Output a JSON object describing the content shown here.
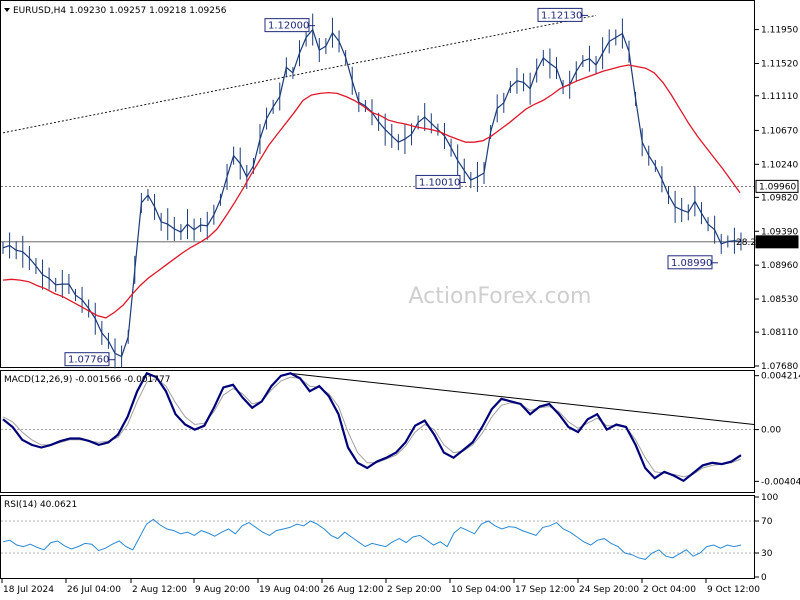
{
  "symbol_line": "EURUSD,H4  1.09230 1.09257 1.09218 1.09256",
  "watermark": "ActionForex.com",
  "colors": {
    "price": "#1a3a7a",
    "ma": "#e0182a",
    "macd": "#00007a",
    "signal": "#a0a0a0",
    "rsi": "#2a8ad6",
    "grid": "#b0b0b0"
  },
  "chart_data": [
    {
      "type": "line",
      "title": "EURUSD,H4  1.09230 1.09257 1.09218 1.09256",
      "ylim": [
        1.0768,
        1.123
      ],
      "y_ticks": [
        "1.11950",
        "1.11520",
        "1.11110",
        "1.10670",
        "1.10240",
        "1.09820",
        "1.09390",
        "1.08960",
        "1.08530",
        "1.08110",
        "1.07680"
      ],
      "reference_lines": [
        {
          "value": 1.0996,
          "label": "1.09960"
        },
        {
          "value": 1.09256,
          "label": "1.09256",
          "style": "solid"
        }
      ],
      "annotations": [
        "1.12000",
        "1.12130",
        "1.10010",
        "1.08990",
        "1.07760"
      ],
      "series": [
        {
          "values": [
            1.0918,
            1.0921,
            1.0915,
            1.0913,
            1.0905,
            1.0895,
            1.0884,
            1.0879,
            1.0871,
            1.0872,
            1.0872,
            1.0858,
            1.0852,
            1.0841,
            1.0828,
            1.081,
            1.08,
            1.0784,
            1.078,
            1.0805,
            1.089,
            1.0975,
            1.0985,
            1.097,
            1.0951,
            1.0948,
            1.0942,
            1.0938,
            1.0948,
            1.0941,
            1.0947,
            1.0946,
            1.096,
            1.0979,
            1.1008,
            1.1035,
            1.1025,
            1.1008,
            1.1022,
            1.1056,
            1.1082,
            1.1097,
            1.111,
            1.1147,
            1.114,
            1.1165,
            1.1185,
            1.1195,
            1.1169,
            1.1174,
            1.1191,
            1.118,
            1.116,
            1.113,
            1.1103,
            1.1098,
            1.109,
            1.1078,
            1.1068,
            1.106,
            1.1052,
            1.1056,
            1.1062,
            1.1077,
            1.1084,
            1.1076,
            1.1068,
            1.106,
            1.1045,
            1.1029,
            1.1016,
            1.1004,
            1.1008,
            1.1013,
            1.1065,
            1.1095,
            1.1102,
            1.1122,
            1.113,
            1.1128,
            1.112,
            1.1143,
            1.1159,
            1.1152,
            1.1146,
            1.1122,
            1.1125,
            1.1142,
            1.1155,
            1.1158,
            1.115,
            1.1165,
            1.118,
            1.1185,
            1.119,
            1.1167,
            1.1107,
            1.1052,
            1.1035,
            1.1022,
            1.1005,
            1.0985,
            1.097,
            1.0966,
            1.0963,
            1.0977,
            1.0962,
            1.0948,
            1.0941,
            1.0923,
            1.0926,
            1.0927,
            1.0926
          ]
        },
        {
          "name": "",
          "values": [
            1.0877,
            1.0878,
            1.0877,
            1.0875,
            1.087,
            1.0866,
            1.086,
            1.0856,
            1.085,
            1.0844,
            1.0838,
            1.0832,
            1.0829,
            1.0836,
            1.0845,
            1.0858,
            1.087,
            1.088,
            1.0888,
            1.0896,
            1.0904,
            1.0912,
            1.0919,
            1.0925,
            1.0932,
            1.0942,
            1.0958,
            1.0975,
            1.0993,
            1.1012,
            1.103,
            1.1048,
            1.1062,
            1.1076,
            1.109,
            1.1105,
            1.1112,
            1.1114,
            1.1115,
            1.1114,
            1.111,
            1.1105,
            1.1098,
            1.109,
            1.1086,
            1.108,
            1.1077,
            1.1075,
            1.1072,
            1.107,
            1.1068,
            1.1065,
            1.106,
            1.1056,
            1.1052,
            1.1052,
            1.1054,
            1.106,
            1.1068,
            1.1076,
            1.1085,
            1.1094,
            1.11,
            1.1105,
            1.1112,
            1.112,
            1.1125,
            1.113,
            1.1134,
            1.1138,
            1.1142,
            1.1145,
            1.1148,
            1.115,
            1.1148,
            1.1146,
            1.114,
            1.1128,
            1.1112,
            1.1094,
            1.1076,
            1.106,
            1.1046,
            1.1032,
            1.1018,
            1.1003,
            1.0988
          ]
        }
      ]
    },
    {
      "type": "line",
      "title": "MACD(12,26,9) -0.001566 -0.001777",
      "ylim": [
        -0.0048,
        0.0045
      ],
      "y_ticks": [
        "0.004214",
        "0.00",
        "-0.004047"
      ],
      "series": [
        {
          "values": [
            0.0008,
            0.0002,
            -0.0008,
            -0.0012,
            -0.0014,
            -0.0012,
            -0.0009,
            -0.0007,
            -0.0007,
            -0.0009,
            -0.0012,
            -0.001,
            -0.0004,
            0.001,
            0.003,
            0.0044,
            0.0041,
            0.003,
            0.0012,
            0.0004,
            0.0,
            0.0003,
            0.0017,
            0.0033,
            0.0035,
            0.0025,
            0.0017,
            0.0022,
            0.0034,
            0.0042,
            0.0044,
            0.004,
            0.003,
            0.0034,
            0.0026,
            0.0012,
            -0.0014,
            -0.0026,
            -0.003,
            -0.0025,
            -0.0022,
            -0.0018,
            -0.001,
            0.0003,
            0.0007,
            -0.0004,
            -0.0018,
            -0.0022,
            -0.0016,
            -0.001,
            0.0002,
            0.0016,
            0.0024,
            0.0022,
            0.002,
            0.0012,
            0.0018,
            0.002,
            0.0012,
            0.0002,
            -0.0002,
            0.0008,
            0.0012,
            0.0,
            0.0004,
            0.0002,
            -0.0012,
            -0.003,
            -0.0038,
            -0.0033,
            -0.0036,
            -0.004,
            -0.0034,
            -0.0028,
            -0.0026,
            -0.0027,
            -0.0025,
            -0.002
          ]
        },
        {
          "values": [
            0.001,
            0.0006,
            -0.0002,
            -0.0008,
            -0.0012,
            -0.0012,
            -0.001,
            -0.0008,
            -0.0008,
            -0.0009,
            -0.001,
            -0.0009,
            -0.0006,
            0.0004,
            0.0022,
            0.0037,
            0.004,
            0.0034,
            0.0021,
            0.001,
            0.0004,
            0.0005,
            0.0014,
            0.0027,
            0.0032,
            0.0028,
            0.002,
            0.0022,
            0.0031,
            0.0038,
            0.0041,
            0.004,
            0.0034,
            0.0033,
            0.0028,
            0.0018,
            -0.0002,
            -0.0018,
            -0.0026,
            -0.0026,
            -0.0023,
            -0.002,
            -0.0013,
            -0.0002,
            0.0004,
            0.0,
            -0.0012,
            -0.0018,
            -0.0017,
            -0.0012,
            -0.0003,
            0.001,
            0.0019,
            0.0021,
            0.002,
            0.0015,
            0.0017,
            0.0018,
            0.0014,
            0.0006,
            0.0001,
            0.0005,
            0.0009,
            0.0003,
            0.0003,
            0.0002,
            -0.0008,
            -0.0022,
            -0.0033,
            -0.0034,
            -0.0035,
            -0.0037,
            -0.0035,
            -0.003,
            -0.0028,
            -0.0027,
            -0.0026,
            -0.0023
          ]
        }
      ]
    },
    {
      "type": "line",
      "title": "RSI(14) 40.0621",
      "ylim": [
        0,
        100
      ],
      "y_ticks": [
        "100",
        "70",
        "30",
        "0"
      ],
      "reference_lines": [
        {
          "value": 70
        },
        {
          "value": 30
        }
      ],
      "series": [
        {
          "values": [
            44,
            46,
            40,
            38,
            41,
            37,
            34,
            43,
            45,
            39,
            35,
            38,
            42,
            41,
            33,
            36,
            41,
            45,
            38,
            34,
            50,
            66,
            72,
            65,
            60,
            58,
            54,
            56,
            52,
            58,
            55,
            51,
            56,
            60,
            54,
            64,
            68,
            62,
            56,
            52,
            58,
            60,
            62,
            66,
            64,
            70,
            66,
            60,
            52,
            48,
            56,
            50,
            44,
            38,
            42,
            40,
            38,
            44,
            48,
            43,
            50,
            52,
            46,
            40,
            44,
            38,
            55,
            62,
            58,
            54,
            66,
            70,
            64,
            60,
            63,
            62,
            58,
            55,
            52,
            62,
            64,
            68,
            60,
            56,
            50,
            44,
            40,
            46,
            48,
            42,
            38,
            30,
            28,
            24,
            22,
            30,
            34,
            26,
            24,
            29,
            34,
            26,
            30,
            38,
            40,
            36,
            40,
            38,
            40
          ]
        }
      ]
    }
  ],
  "x_labels": [
    "18 Jul 2024",
    "26 Jul 04:00",
    "2 Aug 12:00",
    "9 Aug 20:00",
    "19 Aug 04:00",
    "26 Aug 12:00",
    "2 Sep 20:00",
    "10 Sep 04:00",
    "17 Sep 12:00",
    "24 Sep 20:00",
    "2 Oct 04:00",
    "9 Oct 12:00"
  ],
  "price_label_extra": "28.2"
}
